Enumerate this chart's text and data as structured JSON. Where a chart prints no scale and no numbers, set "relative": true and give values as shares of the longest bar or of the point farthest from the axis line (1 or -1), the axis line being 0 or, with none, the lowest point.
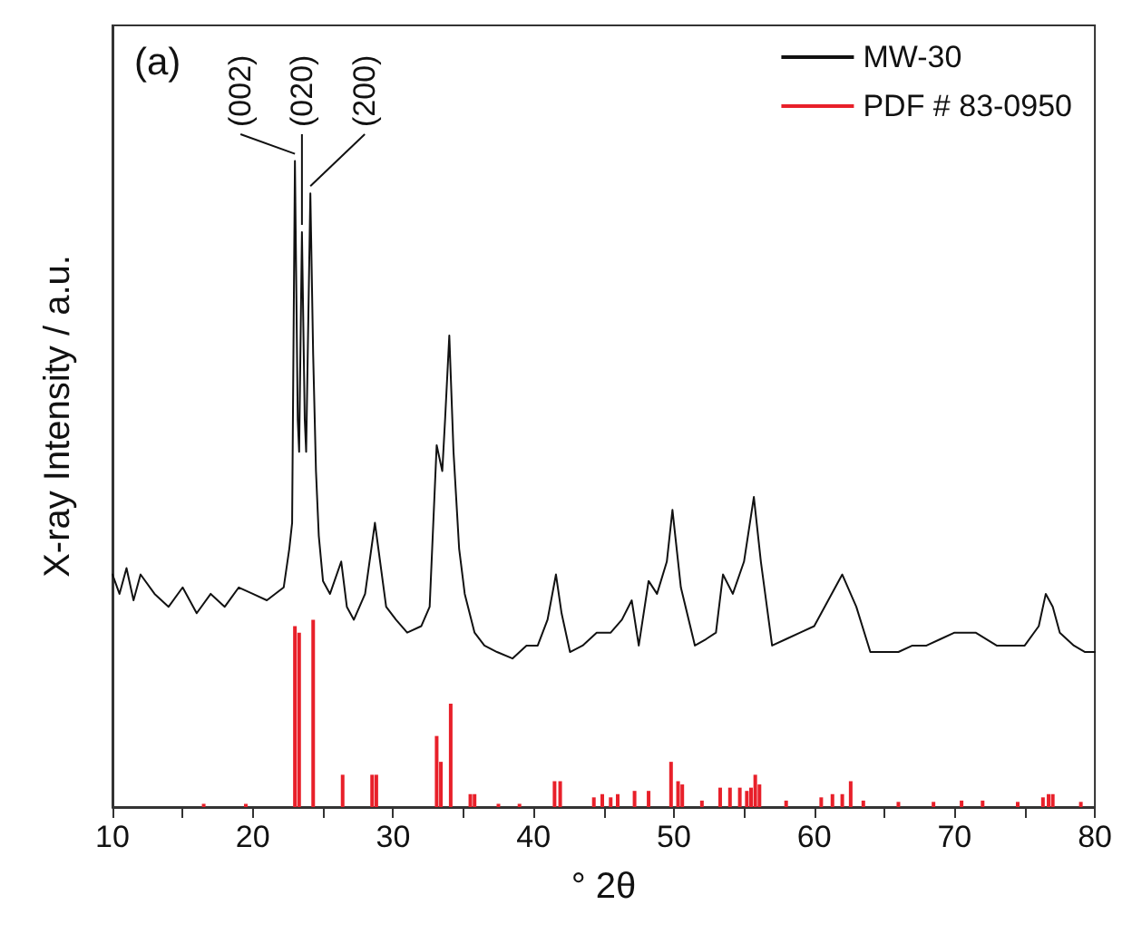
{
  "chart_data": {
    "type": "line",
    "relative": true,
    "xlabel": "° 2θ",
    "ylabel": "X-ray Intensity / a.u.",
    "xlim": [
      10,
      80
    ],
    "xticks": [
      10,
      {
        "value": 15,
        "label": null
      },
      20,
      {
        "value": 25,
        "label": null
      },
      30,
      {
        "value": 35,
        "label": null
      },
      40,
      {
        "value": 45,
        "label": null
      },
      50,
      {
        "value": 55,
        "label": null
      },
      60,
      {
        "value": 65,
        "label": null
      },
      70,
      {
        "value": 75,
        "label": null
      },
      80
    ],
    "tick_labels": "x",
    "grid": false,
    "legend": "top right",
    "marker": "none",
    "line_style": "solid",
    "annotations": [
      "(a)",
      {
        "text": "(002)",
        "x": 23.0,
        "y": 1.0
      },
      {
        "text": "(020)",
        "x": 23.5,
        "y": 0.89
      },
      {
        "text": "(200)",
        "x": 24.1,
        "y": 0.95
      }
    ],
    "series": [
      {
        "name": "MW-30",
        "color": "#111111",
        "x": [
          10,
          10.5,
          11,
          11.5,
          12,
          13,
          14,
          15,
          16,
          17,
          18,
          19,
          20,
          21,
          22.2,
          22.6,
          22.8,
          23.0,
          23.2,
          23.3,
          23.5,
          23.7,
          23.8,
          24.1,
          24.3,
          24.5,
          24.7,
          25.0,
          25.5,
          26.3,
          26.7,
          27.2,
          28.0,
          28.7,
          29.5,
          30.2,
          31.0,
          32.0,
          32.6,
          33.1,
          33.5,
          33.7,
          34.0,
          34.3,
          34.7,
          35.1,
          35.8,
          36.5,
          37.4,
          38.5,
          39.5,
          40.3,
          41.0,
          41.6,
          42.0,
          42.6,
          43.5,
          44.5,
          45.5,
          46.3,
          47.0,
          47.5,
          48.2,
          48.8,
          49.5,
          49.9,
          50.5,
          51.5,
          52.3,
          53.0,
          53.5,
          54.2,
          55.0,
          55.7,
          56.2,
          57.0,
          58.0,
          59.0,
          60.0,
          61.0,
          62.0,
          63.0,
          64.0,
          65.0,
          66.0,
          67.0,
          68.0,
          69.0,
          70.0,
          71.5,
          73.0,
          74.0,
          75.0,
          76.0,
          76.5,
          77.0,
          77.5,
          78.5,
          79.3,
          80
        ],
        "values": [
          0.36,
          0.33,
          0.37,
          0.32,
          0.36,
          0.33,
          0.31,
          0.34,
          0.3,
          0.33,
          0.31,
          0.34,
          0.33,
          0.32,
          0.34,
          0.4,
          0.44,
          1.0,
          0.6,
          0.55,
          0.89,
          0.6,
          0.55,
          0.95,
          0.7,
          0.52,
          0.42,
          0.35,
          0.33,
          0.38,
          0.31,
          0.29,
          0.33,
          0.44,
          0.31,
          0.29,
          0.27,
          0.28,
          0.31,
          0.56,
          0.52,
          0.6,
          0.73,
          0.55,
          0.4,
          0.33,
          0.27,
          0.25,
          0.24,
          0.23,
          0.25,
          0.25,
          0.29,
          0.36,
          0.3,
          0.24,
          0.25,
          0.27,
          0.27,
          0.29,
          0.32,
          0.25,
          0.35,
          0.33,
          0.38,
          0.46,
          0.34,
          0.25,
          0.26,
          0.27,
          0.36,
          0.33,
          0.38,
          0.48,
          0.38,
          0.25,
          0.26,
          0.27,
          0.28,
          0.32,
          0.36,
          0.31,
          0.24,
          0.24,
          0.24,
          0.25,
          0.25,
          0.26,
          0.27,
          0.27,
          0.25,
          0.25,
          0.25,
          0.28,
          0.33,
          0.31,
          0.27,
          0.25,
          0.24,
          0.24
        ]
      },
      {
        "name": "PDF # 83-0950",
        "color": "#e8202a",
        "type": "bar",
        "x": [
          16.5,
          19.5,
          23.0,
          23.3,
          24.3,
          26.4,
          28.5,
          28.8,
          33.1,
          33.4,
          34.1,
          35.5,
          35.8,
          37.5,
          39.0,
          41.5,
          41.9,
          44.3,
          44.9,
          45.5,
          46.0,
          47.2,
          48.2,
          49.8,
          50.3,
          50.6,
          52.0,
          53.3,
          54.0,
          54.7,
          55.2,
          55.5,
          55.8,
          56.1,
          58.0,
          60.5,
          61.3,
          62.0,
          62.6,
          63.5,
          66.0,
          68.5,
          70.5,
          72.0,
          74.5,
          76.3,
          76.7,
          77.0,
          79.0
        ],
        "values": [
          0.005,
          0.005,
          0.28,
          0.27,
          0.29,
          0.05,
          0.05,
          0.05,
          0.11,
          0.07,
          0.16,
          0.02,
          0.02,
          0.005,
          0.005,
          0.04,
          0.04,
          0.015,
          0.02,
          0.015,
          0.02,
          0.025,
          0.025,
          0.07,
          0.04,
          0.035,
          0.01,
          0.03,
          0.03,
          0.03,
          0.025,
          0.03,
          0.05,
          0.035,
          0.01,
          0.015,
          0.02,
          0.02,
          0.04,
          0.01,
          0.008,
          0.008,
          0.01,
          0.01,
          0.008,
          0.015,
          0.02,
          0.02,
          0.008
        ]
      }
    ]
  }
}
